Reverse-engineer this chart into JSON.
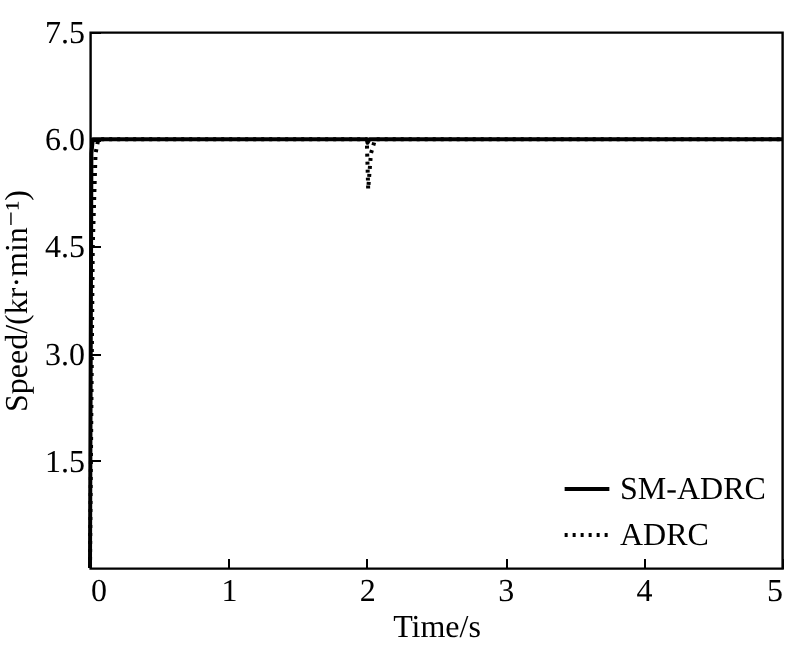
{
  "chart_data": {
    "type": "line",
    "xlabel": "Time/s",
    "ylabel": "Speed/(kr·min⁻¹)",
    "xlim": [
      0,
      5
    ],
    "xticks": [
      0,
      1,
      2,
      3,
      4,
      5
    ],
    "ylim": [
      0,
      7.5
    ],
    "yticks": [
      1.5,
      {
        "value": 3,
        "label": "3.0"
      },
      4.5,
      {
        "value": 6,
        "label": "6.0"
      },
      7.5
    ],
    "grid": false,
    "legend": "bottom right",
    "marker": "none",
    "series": [
      {
        "name": "SM-ADRC",
        "color": "#000000",
        "line_style": "solid",
        "x": [
          0,
          0.01,
          0.02,
          2,
          2.005,
          2.02,
          5
        ],
        "values": [
          0,
          5.8,
          6,
          6,
          5.95,
          6,
          6
        ]
      },
      {
        "name": "ADRC",
        "color": "#000000",
        "line_style": "dotted",
        "x": [
          0,
          0.02,
          0.04,
          0.06,
          2,
          2.01,
          2.03,
          2.06,
          5
        ],
        "values": [
          0,
          4.5,
          5.8,
          6,
          6,
          5.3,
          5.8,
          6,
          6
        ]
      }
    ]
  }
}
